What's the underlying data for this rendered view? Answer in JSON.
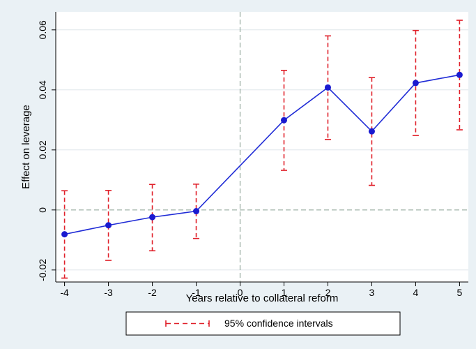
{
  "chart_data": {
    "type": "line",
    "title": "",
    "xlabel": "Years relative to collateral reform",
    "ylabel": "Effect on leverage",
    "xlim": [
      -4.2,
      5.2
    ],
    "ylim": [
      -0.024,
      0.066
    ],
    "x_ticks": [
      -4,
      -3,
      -2,
      -1,
      0,
      1,
      2,
      3,
      4,
      5
    ],
    "x_tick_labels": [
      "-4",
      "-3",
      "-2",
      "-1",
      "0",
      "1",
      "2",
      "3",
      "4",
      "5"
    ],
    "y_ticks": [
      -0.02,
      0,
      0.02,
      0.04,
      0.06
    ],
    "y_tick_labels": [
      "-0.02",
      "0",
      "0.02",
      "0.04",
      "0.06"
    ],
    "grid": "horizontal",
    "reference_lines": {
      "x": 0,
      "y": 0
    },
    "legend": {
      "position": "bottom",
      "label": "95% confidence intervals"
    },
    "series": [
      {
        "x": [
          -4,
          -3,
          -2,
          -1,
          1,
          2,
          3,
          4,
          5
        ],
        "y": [
          -0.0081,
          -0.0051,
          -0.0024,
          -0.0004,
          0.0299,
          0.0408,
          0.0262,
          0.0423,
          0.045
        ],
        "ci_low": [
          -0.0227,
          -0.0168,
          -0.0136,
          -0.0095,
          0.0132,
          0.0235,
          0.0082,
          0.0248,
          0.0267
        ],
        "ci_high": [
          0.0064,
          0.0065,
          0.0085,
          0.0086,
          0.0465,
          0.058,
          0.0441,
          0.0598,
          0.0632
        ]
      }
    ],
    "colors": {
      "line": "#1f2bd6",
      "marker": "#1a1ad0",
      "ci": "#e0202a",
      "grid": "#dfe6ea",
      "reference": "#93a79c",
      "plot_bg": "#ffffff",
      "outer_bg": "#eaf1f5"
    }
  }
}
